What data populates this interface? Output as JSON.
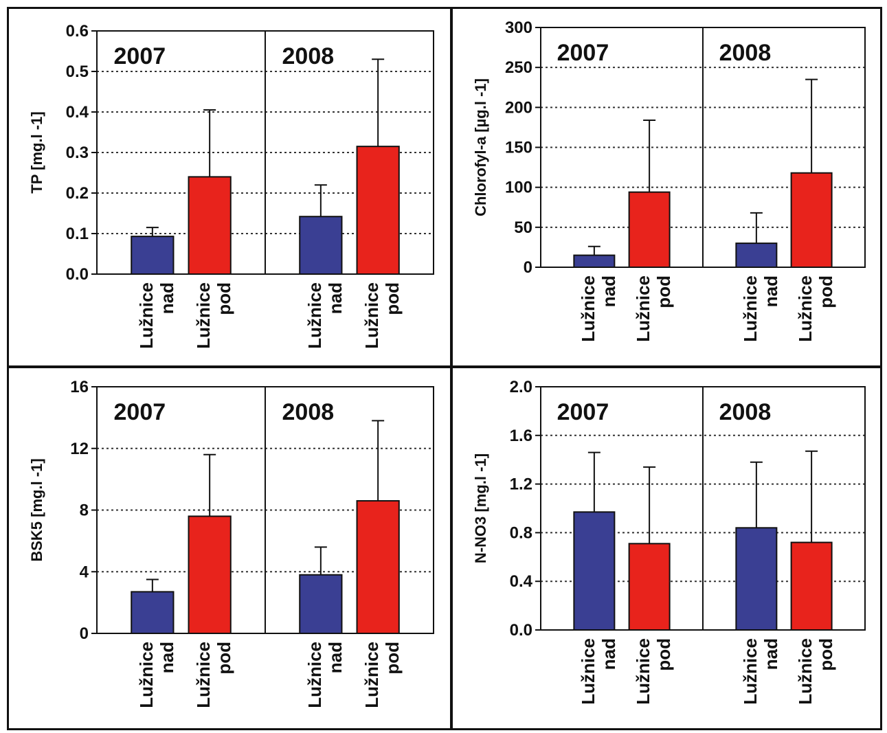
{
  "colors": {
    "nad": "#3a3f93",
    "pod": "#e8231c",
    "grid": "#333333",
    "frame": "#111111"
  },
  "charts": [
    {
      "id": "tp",
      "ylabel": "TP [mg.l -1]",
      "yticks": [
        "0.0",
        "0.1",
        "0.2",
        "0.3",
        "0.4",
        "0.5",
        "0.6"
      ],
      "years": [
        "2007",
        "2008"
      ],
      "categories": [
        "Lužnice nad",
        "Lužnice pod",
        "Lužnice nad",
        "Lužnice pod"
      ]
    },
    {
      "id": "chlorofyl",
      "ylabel": "Chlorofyl-a [µg.l -1]",
      "yticks": [
        "0",
        "50",
        "100",
        "150",
        "200",
        "250",
        "300"
      ],
      "years": [
        "2007",
        "2008"
      ],
      "categories": [
        "Lužnice nad",
        "Lužnice pod",
        "Lužnice nad",
        "Lužnice pod"
      ]
    },
    {
      "id": "bsk5",
      "ylabel": "BSK5 [mg.l -1]",
      "yticks": [
        "0",
        "4",
        "8",
        "12",
        "16"
      ],
      "years": [
        "2007",
        "2008"
      ],
      "categories": [
        "Lužnice nad",
        "Lužnice pod",
        "Lužnice nad",
        "Lužnice pod"
      ]
    },
    {
      "id": "nno3",
      "ylabel": "N-NO3 [mg.l -1]",
      "yticks": [
        "0.0",
        "0.4",
        "0.8",
        "1.2",
        "1.6",
        "2.0"
      ],
      "years": [
        "2007",
        "2008"
      ],
      "categories": [
        "Lužnice nad",
        "Lužnice pod",
        "Lužnice nad",
        "Lužnice pod"
      ]
    }
  ],
  "chart_data": [
    {
      "type": "bar",
      "ylabel": "TP [mg.l -1]",
      "ylim": [
        0,
        0.6
      ],
      "grid": true,
      "groups": [
        "2007",
        "2008"
      ],
      "categories": [
        "Lužnice nad",
        "Lužnice pod"
      ],
      "series": [
        {
          "group": "2007",
          "values": [
            0.093,
            0.24
          ],
          "errors": [
            0.115,
            0.405
          ]
        },
        {
          "group": "2008",
          "values": [
            0.142,
            0.315
          ],
          "errors": [
            0.22,
            0.53
          ]
        }
      ]
    },
    {
      "type": "bar",
      "ylabel": "Chlorofyl-a [µg.l -1]",
      "ylim": [
        0,
        300
      ],
      "grid": true,
      "groups": [
        "2007",
        "2008"
      ],
      "categories": [
        "Lužnice nad",
        "Lužnice pod"
      ],
      "series": [
        {
          "group": "2007",
          "values": [
            15,
            94
          ],
          "errors": [
            26,
            184
          ]
        },
        {
          "group": "2008",
          "values": [
            30,
            118
          ],
          "errors": [
            68,
            235
          ]
        }
      ]
    },
    {
      "type": "bar",
      "ylabel": "BSK5 [mg.l -1]",
      "ylim": [
        0,
        16
      ],
      "grid": true,
      "groups": [
        "2007",
        "2008"
      ],
      "categories": [
        "Lužnice nad",
        "Lužnice pod"
      ],
      "series": [
        {
          "group": "2007",
          "values": [
            2.7,
            7.6
          ],
          "errors": [
            3.5,
            11.6
          ]
        },
        {
          "group": "2008",
          "values": [
            3.8,
            8.6
          ],
          "errors": [
            5.6,
            13.8
          ]
        }
      ]
    },
    {
      "type": "bar",
      "ylabel": "N-NO3 [mg.l -1]",
      "ylim": [
        0,
        2.0
      ],
      "grid": true,
      "groups": [
        "2007",
        "2008"
      ],
      "categories": [
        "Lužnice nad",
        "Lužnice pod"
      ],
      "series": [
        {
          "group": "2007",
          "values": [
            0.97,
            0.71
          ],
          "errors": [
            1.46,
            1.34
          ]
        },
        {
          "group": "2008",
          "values": [
            0.84,
            0.72
          ],
          "errors": [
            1.38,
            1.47
          ]
        }
      ]
    }
  ]
}
